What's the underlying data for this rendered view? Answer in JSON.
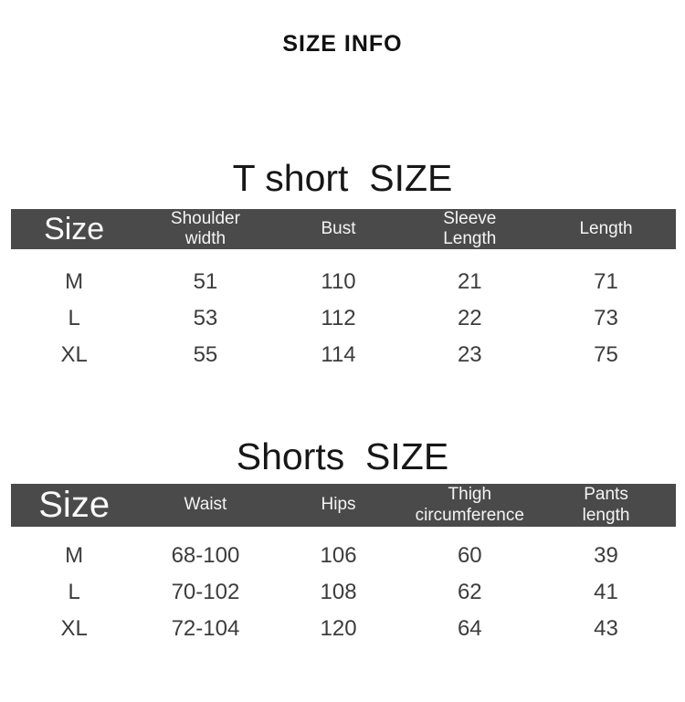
{
  "page_title": "SIZE INFO",
  "colors": {
    "background": "#ffffff",
    "header_bar_bg": "#4a4a4a",
    "header_bar_text": "#f4f4f4",
    "body_text": "#3c3c3c",
    "title_text": "#171717"
  },
  "tables": [
    {
      "title": "T short  SIZE",
      "headers": [
        "Size",
        "Shoulder width",
        "Bust",
        "Sleeve Length",
        "Length"
      ],
      "rows": [
        [
          "M",
          "51",
          "110",
          "21",
          "71"
        ],
        [
          "L",
          "53",
          "112",
          "22",
          "73"
        ],
        [
          "XL",
          "55",
          "114",
          "23",
          "75"
        ]
      ]
    },
    {
      "title": "Shorts  SIZE",
      "headers": [
        "Size",
        "Waist",
        "Hips",
        "Thigh circumference",
        "Pants length"
      ],
      "rows": [
        [
          "M",
          "68-100",
          "106",
          "60",
          "39"
        ],
        [
          "L",
          "70-102",
          "108",
          "62",
          "41"
        ],
        [
          "XL",
          "72-104",
          "120",
          "64",
          "43"
        ]
      ]
    }
  ]
}
